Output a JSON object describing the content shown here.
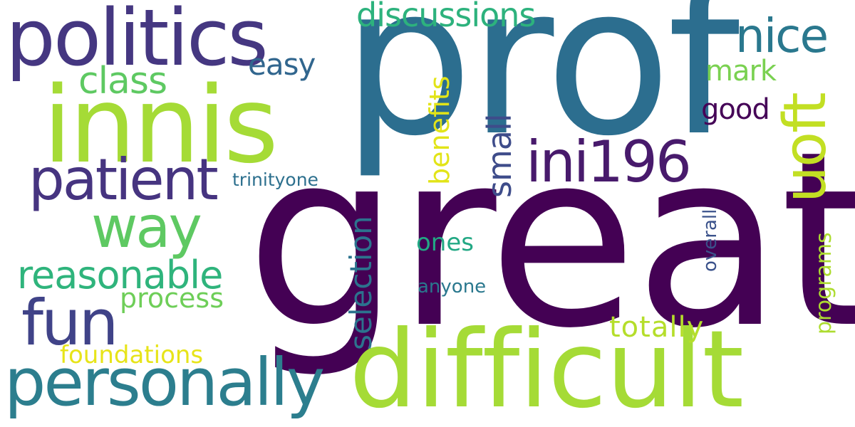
{
  "words": {
    "great": {
      "text": "great",
      "color": "#440154"
    },
    "prof": {
      "text": "prof",
      "color": "#2c6e8f"
    },
    "difficult": {
      "text": "difficult",
      "color": "#a5db36"
    },
    "innis": {
      "text": "innis",
      "color": "#a5db36"
    },
    "politics": {
      "text": "politics",
      "color": "#453781"
    },
    "personally": {
      "text": "personally",
      "color": "#2c7e8e"
    },
    "fun": {
      "text": "fun",
      "color": "#404388"
    },
    "patient": {
      "text": "patient",
      "color": "#463480"
    },
    "way": {
      "text": "way",
      "color": "#5ec962"
    },
    "reasonable": {
      "text": "reasonable",
      "color": "#2fb47c"
    },
    "ini196": {
      "text": "ini196",
      "color": "#481a6c"
    },
    "uoft": {
      "text": "uoft",
      "color": "#c2df23"
    },
    "nice": {
      "text": "nice",
      "color": "#2a788e"
    },
    "discussions": {
      "text": "discussions",
      "color": "#2db27d"
    },
    "class": {
      "text": "class",
      "color": "#5ec962"
    },
    "easy": {
      "text": "easy",
      "color": "#31668e"
    },
    "small": {
      "text": "small",
      "color": "#3e4c8a"
    },
    "selection": {
      "text": "selection",
      "color": "#2c738e"
    },
    "benefits": {
      "text": "benefits",
      "color": "#e2e418"
    },
    "mark": {
      "text": "mark",
      "color": "#7ad151"
    },
    "good": {
      "text": "good",
      "color": "#450457"
    },
    "process": {
      "text": "process",
      "color": "#6ece58"
    },
    "totally": {
      "text": "totally",
      "color": "#b5de2b"
    },
    "foundations": {
      "text": "foundations",
      "color": "#e7e419"
    },
    "ones": {
      "text": "ones",
      "color": "#22a884"
    },
    "anyone": {
      "text": "anyone",
      "color": "#2a788e"
    },
    "overall": {
      "text": "overall",
      "color": "#3b528b"
    },
    "programs": {
      "text": "programs",
      "color": "#addc30"
    },
    "trinityone": {
      "text": "trinityone",
      "color": "#2d708e"
    }
  }
}
